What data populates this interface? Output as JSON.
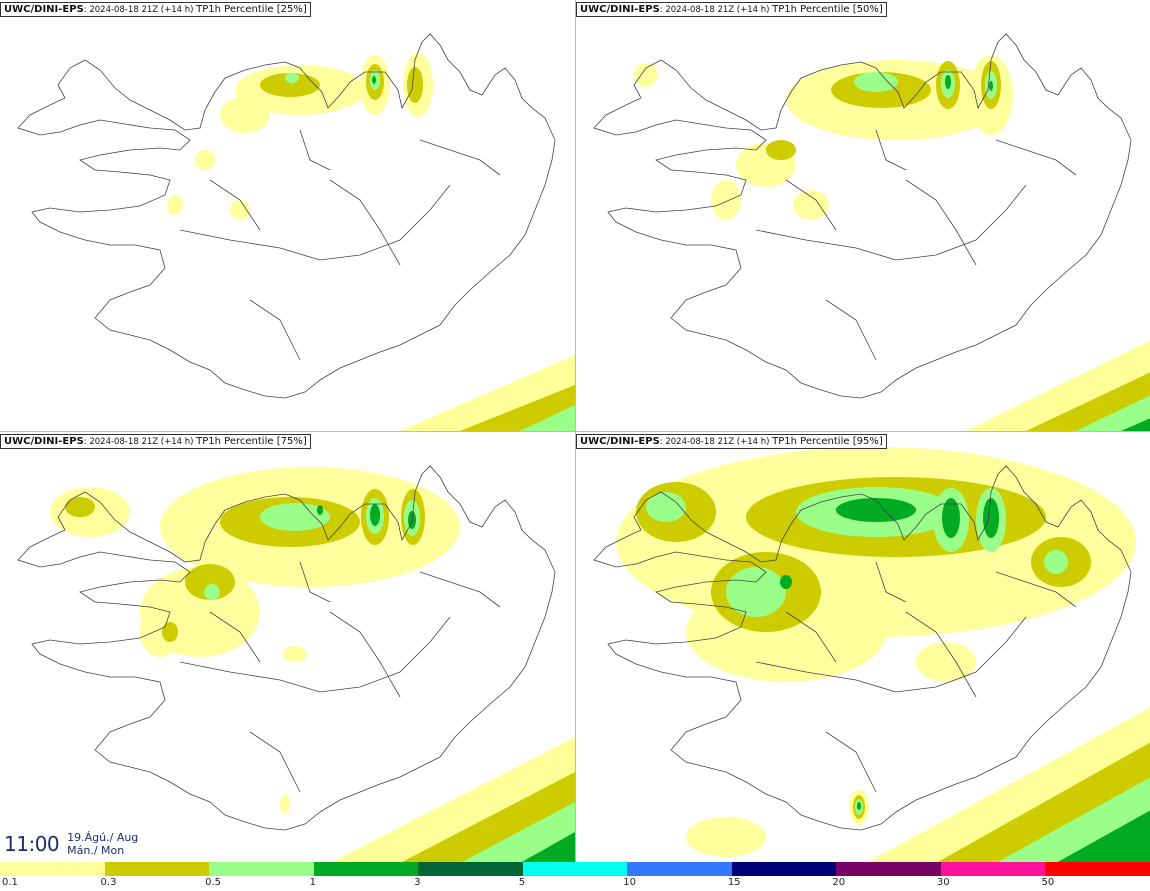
{
  "panels": [
    {
      "model": "UWC/DINI-EPS",
      "run": "2024-08-18 21Z (+14 h)",
      "field": "TP1h Percentile [25%]"
    },
    {
      "model": "UWC/DINI-EPS",
      "run": "2024-08-18 21Z (+14 h)",
      "field": "TP1h Percentile [50%]"
    },
    {
      "model": "UWC/DINI-EPS",
      "run": "2024-08-18 21Z (+14 h)",
      "field": "TP1h Percentile [75%]"
    },
    {
      "model": "UWC/DINI-EPS",
      "run": "2024-08-18 21Z (+14 h)",
      "field": "TP1h Percentile [95%]"
    }
  ],
  "valid_time": {
    "time": "11:00",
    "date_line1": "19.Ágú./ Aug",
    "date_line2": "Mán./ Mon"
  },
  "legend": {
    "labels": [
      "0.1",
      "0.3",
      "0.5",
      "1",
      "3",
      "5",
      "10",
      "15",
      "20",
      "30",
      "50"
    ],
    "colors": [
      "#ffff99",
      "#cccc00",
      "#99ff88",
      "#00aa22",
      "#006633",
      "#00ffee",
      "#3377ff",
      "#000077",
      "#770066",
      "#ff1199",
      "#ff0000"
    ]
  }
}
